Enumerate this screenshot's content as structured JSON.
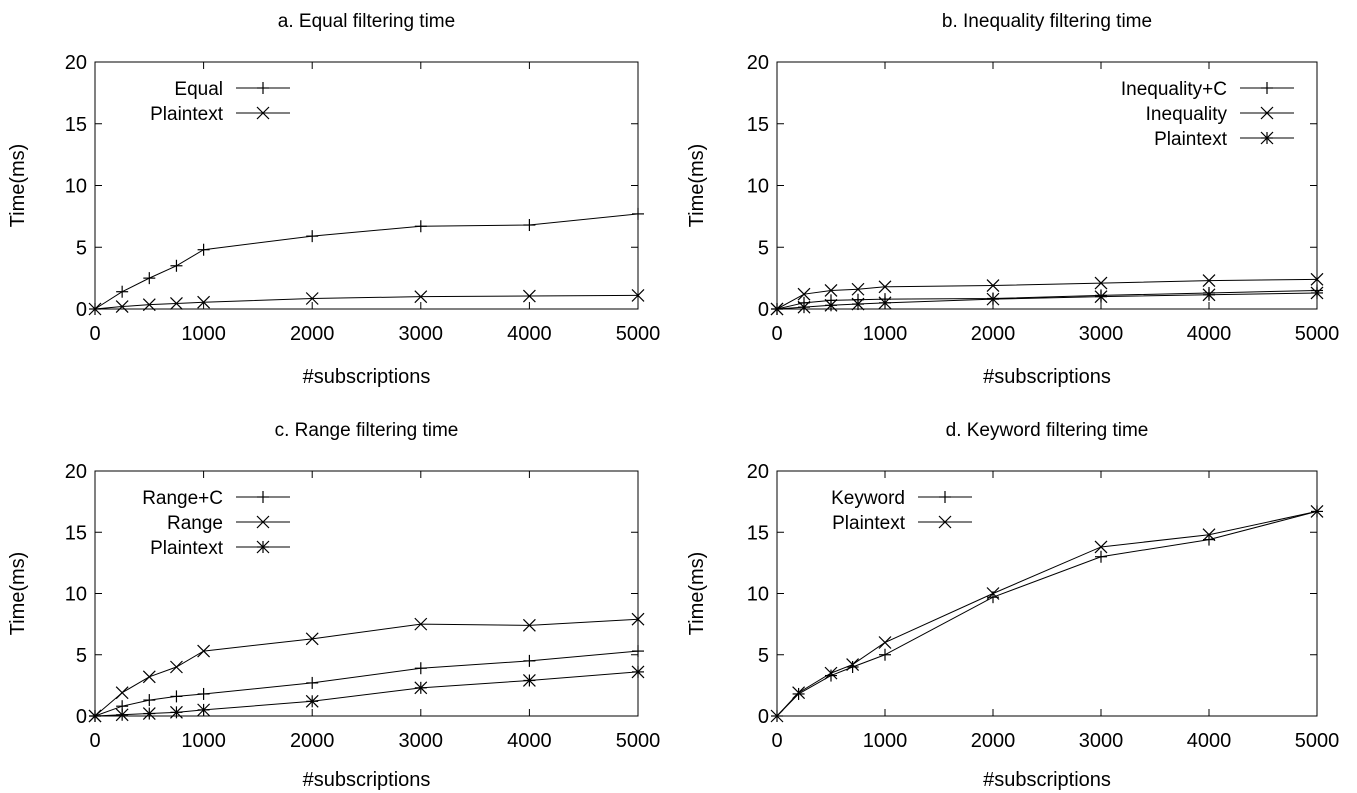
{
  "chart_data": [
    {
      "type": "line",
      "title": "a. Equal filtering time",
      "xlabel": "#subscriptions",
      "ylabel": "Time(ms)",
      "xlim": [
        0,
        5000
      ],
      "ylim": [
        0,
        20
      ],
      "xticks": [
        "0",
        "1000",
        "2000",
        "3000",
        "4000",
        "5000"
      ],
      "yticks": [
        "0",
        "5",
        "10",
        "15",
        "20"
      ],
      "legend_position": "top-left",
      "series": [
        {
          "name": "Equal",
          "marker": "plus",
          "x": [
            0,
            250,
            500,
            750,
            1000,
            2000,
            3000,
            4000,
            5000
          ],
          "y": [
            0,
            1.4,
            2.5,
            3.5,
            4.8,
            5.9,
            6.7,
            6.8,
            7.7
          ]
        },
        {
          "name": "Plaintext",
          "marker": "cross",
          "x": [
            0,
            250,
            500,
            750,
            1000,
            2000,
            3000,
            4000,
            5000
          ],
          "y": [
            0,
            0.2,
            0.35,
            0.45,
            0.55,
            0.85,
            1.0,
            1.05,
            1.1
          ]
        }
      ]
    },
    {
      "type": "line",
      "title": "b. Inequality filtering time",
      "xlabel": "#subscriptions",
      "ylabel": "Time(ms)",
      "xlim": [
        0,
        5000
      ],
      "ylim": [
        0,
        20
      ],
      "xticks": [
        "0",
        "1000",
        "2000",
        "3000",
        "4000",
        "5000"
      ],
      "yticks": [
        "0",
        "5",
        "10",
        "15",
        "20"
      ],
      "legend_position": "top-right",
      "series": [
        {
          "name": "Inequality+C",
          "marker": "plus",
          "x": [
            0,
            250,
            500,
            750,
            1000,
            2000,
            3000,
            4000,
            5000
          ],
          "y": [
            0,
            0.5,
            0.7,
            0.75,
            0.8,
            0.85,
            1.1,
            1.3,
            1.5
          ]
        },
        {
          "name": "Inequality",
          "marker": "cross",
          "x": [
            0,
            250,
            500,
            750,
            1000,
            2000,
            3000,
            4000,
            5000
          ],
          "y": [
            0,
            1.2,
            1.5,
            1.6,
            1.8,
            1.9,
            2.1,
            2.3,
            2.4
          ]
        },
        {
          "name": "Plaintext",
          "marker": "star",
          "x": [
            0,
            250,
            500,
            750,
            1000,
            2000,
            3000,
            4000,
            5000
          ],
          "y": [
            0,
            0.15,
            0.3,
            0.4,
            0.5,
            0.8,
            1.0,
            1.15,
            1.3
          ]
        }
      ]
    },
    {
      "type": "line",
      "title": "c. Range filtering time",
      "xlabel": "#subscriptions",
      "ylabel": "Time(ms)",
      "xlim": [
        0,
        5000
      ],
      "ylim": [
        0,
        20
      ],
      "xticks": [
        "0",
        "1000",
        "2000",
        "3000",
        "4000",
        "5000"
      ],
      "yticks": [
        "0",
        "5",
        "10",
        "15",
        "20"
      ],
      "legend_position": "top-left",
      "series": [
        {
          "name": "Range+C",
          "marker": "plus",
          "x": [
            0,
            250,
            500,
            750,
            1000,
            2000,
            3000,
            4000,
            5000
          ],
          "y": [
            0,
            0.8,
            1.3,
            1.6,
            1.8,
            2.7,
            3.9,
            4.5,
            5.3
          ]
        },
        {
          "name": "Range",
          "marker": "cross",
          "x": [
            0,
            250,
            500,
            750,
            1000,
            2000,
            3000,
            4000,
            5000
          ],
          "y": [
            0,
            1.9,
            3.2,
            4.0,
            5.3,
            6.3,
            7.5,
            7.4,
            7.9
          ]
        },
        {
          "name": "Plaintext",
          "marker": "star",
          "x": [
            0,
            250,
            500,
            750,
            1000,
            2000,
            3000,
            4000,
            5000
          ],
          "y": [
            0,
            0.1,
            0.2,
            0.3,
            0.5,
            1.2,
            2.3,
            2.9,
            3.6
          ]
        }
      ]
    },
    {
      "type": "line",
      "title": "d. Keyword filtering time",
      "xlabel": "#subscriptions",
      "ylabel": "Time(ms)",
      "xlim": [
        0,
        5000
      ],
      "ylim": [
        0,
        20
      ],
      "xticks": [
        "0",
        "1000",
        "2000",
        "3000",
        "4000",
        "5000"
      ],
      "yticks": [
        "0",
        "5",
        "10",
        "15",
        "20"
      ],
      "legend_position": "top-left",
      "series": [
        {
          "name": "Keyword",
          "marker": "plus",
          "x": [
            0,
            200,
            500,
            700,
            1000,
            2000,
            3000,
            4000,
            5000
          ],
          "y": [
            0,
            1.8,
            3.3,
            4.0,
            5.0,
            9.7,
            13.0,
            14.4,
            16.7
          ]
        },
        {
          "name": "Plaintext",
          "marker": "cross",
          "x": [
            0,
            200,
            500,
            700,
            1000,
            2000,
            3000,
            4000,
            5000
          ],
          "y": [
            0,
            1.9,
            3.5,
            4.2,
            6.0,
            10.0,
            13.8,
            14.8,
            16.7
          ]
        }
      ]
    }
  ]
}
